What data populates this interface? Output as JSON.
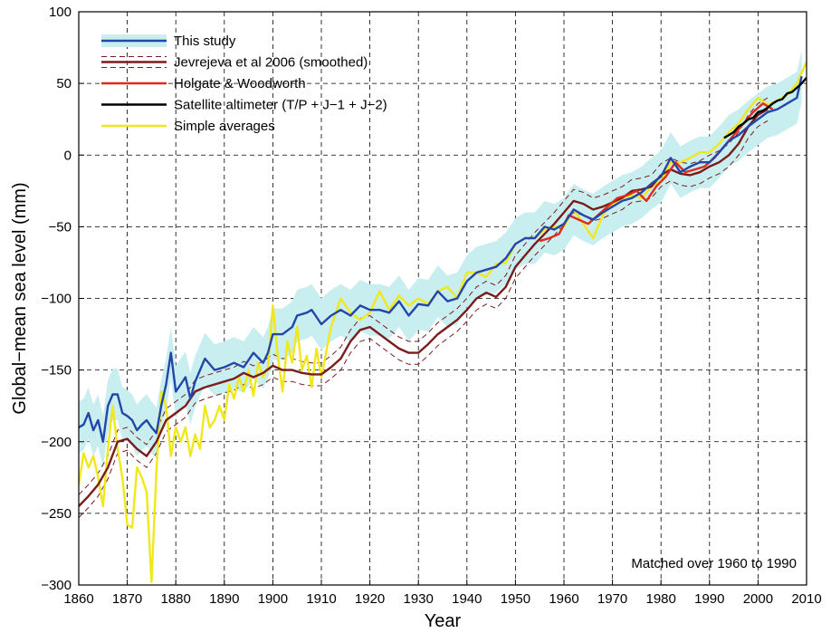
{
  "chart_data": {
    "type": "line",
    "xlabel": "Year",
    "ylabel": "Global−mean sea level (mm)",
    "xlim": [
      1860,
      2010
    ],
    "ylim": [
      -300,
      100
    ],
    "xticks": [
      1860,
      1870,
      1880,
      1890,
      1900,
      1910,
      1920,
      1930,
      1940,
      1950,
      1960,
      1970,
      1980,
      1990,
      2000,
      2010
    ],
    "yticks": [
      100,
      50,
      0,
      -50,
      -100,
      -150,
      -200,
      -250,
      -300
    ],
    "ytick_labels": [
      "100",
      "50",
      "0",
      "−50",
      "−100",
      "−150",
      "−200",
      "−250",
      "−300"
    ],
    "grid": true,
    "legend_position": "top-left",
    "annotation": "Matched over 1960 to 1990",
    "colors": {
      "this_study": "#2346a8",
      "band": "#c8eef0",
      "jevrejeva": "#7a1c1c",
      "holgate": "#e02a1c",
      "satellite": "#000000",
      "simple": "#f1e81c"
    },
    "series": [
      {
        "name": "This study",
        "color": "#2346a8",
        "uncertainty_band": 18,
        "x": [
          1860,
          1861,
          1862,
          1863,
          1864,
          1865,
          1866,
          1867,
          1868,
          1869,
          1870,
          1871,
          1872,
          1873,
          1874,
          1875,
          1876,
          1877,
          1878,
          1879,
          1880,
          1881,
          1882,
          1883,
          1884,
          1886,
          1888,
          1890,
          1892,
          1894,
          1896,
          1898,
          1899,
          1900,
          1902,
          1904,
          1905,
          1907,
          1908,
          1910,
          1912,
          1914,
          1916,
          1918,
          1920,
          1922,
          1924,
          1926,
          1928,
          1930,
          1932,
          1934,
          1936,
          1938,
          1940,
          1942,
          1944,
          1946,
          1948,
          1950,
          1952,
          1954,
          1956,
          1958,
          1960,
          1962,
          1964,
          1966,
          1968,
          1970,
          1972,
          1974,
          1976,
          1978,
          1980,
          1982,
          1984,
          1986,
          1988,
          1990,
          1992,
          1994,
          1996,
          1998,
          2000,
          2002,
          2004,
          2006,
          2008,
          2009
        ],
        "values": [
          -190,
          -188,
          -180,
          -192,
          -185,
          -200,
          -175,
          -167,
          -167,
          -180,
          -182,
          -185,
          -192,
          -188,
          -185,
          -190,
          -194,
          -175,
          -160,
          -138,
          -165,
          -160,
          -155,
          -170,
          -158,
          -142,
          -150,
          -148,
          -145,
          -148,
          -138,
          -145,
          -138,
          -125,
          -125,
          -120,
          -112,
          -110,
          -108,
          -118,
          -112,
          -108,
          -112,
          -105,
          -108,
          -108,
          -110,
          -102,
          -112,
          -104,
          -105,
          -95,
          -102,
          -100,
          -88,
          -82,
          -80,
          -78,
          -72,
          -62,
          -58,
          -58,
          -50,
          -52,
          -48,
          -38,
          -42,
          -45,
          -40,
          -36,
          -32,
          -30,
          -26,
          -20,
          -15,
          -2,
          -12,
          -8,
          -5,
          -5,
          2,
          10,
          14,
          20,
          25,
          30,
          32,
          36,
          40,
          55
        ]
      },
      {
        "name": "Jevrejeva et al 2006 (smoothed)",
        "color": "#7a1c1c",
        "dashed_envelope": 8,
        "x": [
          1860,
          1862,
          1864,
          1866,
          1868,
          1870,
          1872,
          1874,
          1876,
          1878,
          1880,
          1882,
          1884,
          1886,
          1888,
          1890,
          1892,
          1894,
          1896,
          1898,
          1900,
          1902,
          1904,
          1906,
          1908,
          1910,
          1912,
          1914,
          1916,
          1918,
          1920,
          1922,
          1924,
          1926,
          1928,
          1930,
          1932,
          1934,
          1936,
          1938,
          1940,
          1942,
          1944,
          1946,
          1948,
          1950,
          1952,
          1954,
          1956,
          1958,
          1960,
          1962,
          1964,
          1966,
          1968,
          1970,
          1972,
          1974,
          1976,
          1978,
          1980,
          1982,
          1984,
          1986,
          1988,
          1990,
          1992,
          1994,
          1996,
          1998,
          2000,
          2002
        ],
        "values": [
          -245,
          -238,
          -230,
          -218,
          -200,
          -198,
          -205,
          -210,
          -200,
          -185,
          -180,
          -175,
          -165,
          -162,
          -160,
          -158,
          -156,
          -152,
          -155,
          -152,
          -147,
          -150,
          -150,
          -152,
          -153,
          -153,
          -148,
          -142,
          -130,
          -122,
          -120,
          -125,
          -130,
          -135,
          -138,
          -138,
          -132,
          -125,
          -120,
          -115,
          -108,
          -100,
          -96,
          -99,
          -92,
          -78,
          -70,
          -62,
          -55,
          -48,
          -40,
          -32,
          -34,
          -38,
          -36,
          -33,
          -30,
          -25,
          -24,
          -22,
          -14,
          -10,
          -13,
          -14,
          -12,
          -8,
          -5,
          0,
          8,
          20,
          28,
          32
        ]
      },
      {
        "name": "Holgate & Woodworth",
        "color": "#e02a1c",
        "x": [
          1955,
          1957,
          1959,
          1961,
          1963,
          1965,
          1967,
          1969,
          1971,
          1973,
          1975,
          1977,
          1979,
          1981,
          1983,
          1985,
          1987,
          1989,
          1991,
          1993,
          1995,
          1997,
          1999,
          2001,
          2003
        ],
        "values": [
          -60,
          -58,
          -55,
          -42,
          -45,
          -48,
          -42,
          -36,
          -30,
          -28,
          -25,
          -32,
          -22,
          -15,
          -5,
          -12,
          -10,
          -8,
          -2,
          6,
          14,
          22,
          30,
          36,
          32
        ]
      },
      {
        "name": "Satellite altimeter (T/P + J−1 + J−2)",
        "color": "#000000",
        "x": [
          1993,
          1994,
          1995,
          1996,
          1997,
          1998,
          1999,
          2000,
          2001,
          2002,
          2003,
          2004,
          2005,
          2006,
          2007,
          2008,
          2009,
          2010
        ],
        "values": [
          12,
          14,
          16,
          20,
          22,
          25,
          26,
          30,
          31,
          33,
          36,
          38,
          39,
          43,
          44,
          47,
          50,
          54
        ]
      },
      {
        "name": "Simple averages",
        "color": "#f1e81c",
        "x": [
          1860,
          1861,
          1862,
          1863,
          1864,
          1865,
          1866,
          1867,
          1868,
          1869,
          1870,
          1871,
          1872,
          1873,
          1874,
          1875,
          1876,
          1877,
          1878,
          1879,
          1880,
          1881,
          1882,
          1883,
          1884,
          1885,
          1886,
          1887,
          1888,
          1889,
          1890,
          1891,
          1892,
          1893,
          1894,
          1895,
          1896,
          1897,
          1898,
          1899,
          1900,
          1901,
          1902,
          1903,
          1904,
          1905,
          1906,
          1907,
          1908,
          1909,
          1910,
          1912,
          1914,
          1916,
          1918,
          1920,
          1922,
          1924,
          1926,
          1928,
          1930,
          1932,
          1934,
          1936,
          1938,
          1940,
          1942,
          1944,
          1946,
          1948,
          1950,
          1952,
          1954,
          1956,
          1958,
          1960,
          1962,
          1964,
          1966,
          1968,
          1970,
          1972,
          1974,
          1976,
          1978,
          1980,
          1982,
          1984,
          1986,
          1988,
          1990,
          1992,
          1994,
          1996,
          1998,
          2000,
          2002,
          2004,
          2006,
          2008,
          2010
        ],
        "values": [
          -230,
          -208,
          -218,
          -210,
          -225,
          -245,
          -205,
          -175,
          -205,
          -225,
          -258,
          -260,
          -218,
          -225,
          -235,
          -298,
          -220,
          -165,
          -175,
          -210,
          -190,
          -200,
          -190,
          -210,
          -195,
          -205,
          -175,
          -190,
          -185,
          -175,
          -185,
          -160,
          -170,
          -155,
          -165,
          -150,
          -168,
          -145,
          -155,
          -148,
          -105,
          -140,
          -165,
          -130,
          -145,
          -120,
          -150,
          -140,
          -162,
          -135,
          -155,
          -120,
          -100,
          -110,
          -115,
          -110,
          -95,
          -108,
          -98,
          -105,
          -100,
          -104,
          -95,
          -92,
          -100,
          -82,
          -82,
          -85,
          -76,
          -75,
          -62,
          -58,
          -58,
          -52,
          -50,
          -50,
          -38,
          -48,
          -58,
          -42,
          -34,
          -30,
          -28,
          -30,
          -22,
          -18,
          -5,
          -5,
          -2,
          2,
          2,
          8,
          16,
          22,
          32,
          40,
          35,
          38,
          42,
          50,
          65
        ]
      }
    ]
  }
}
